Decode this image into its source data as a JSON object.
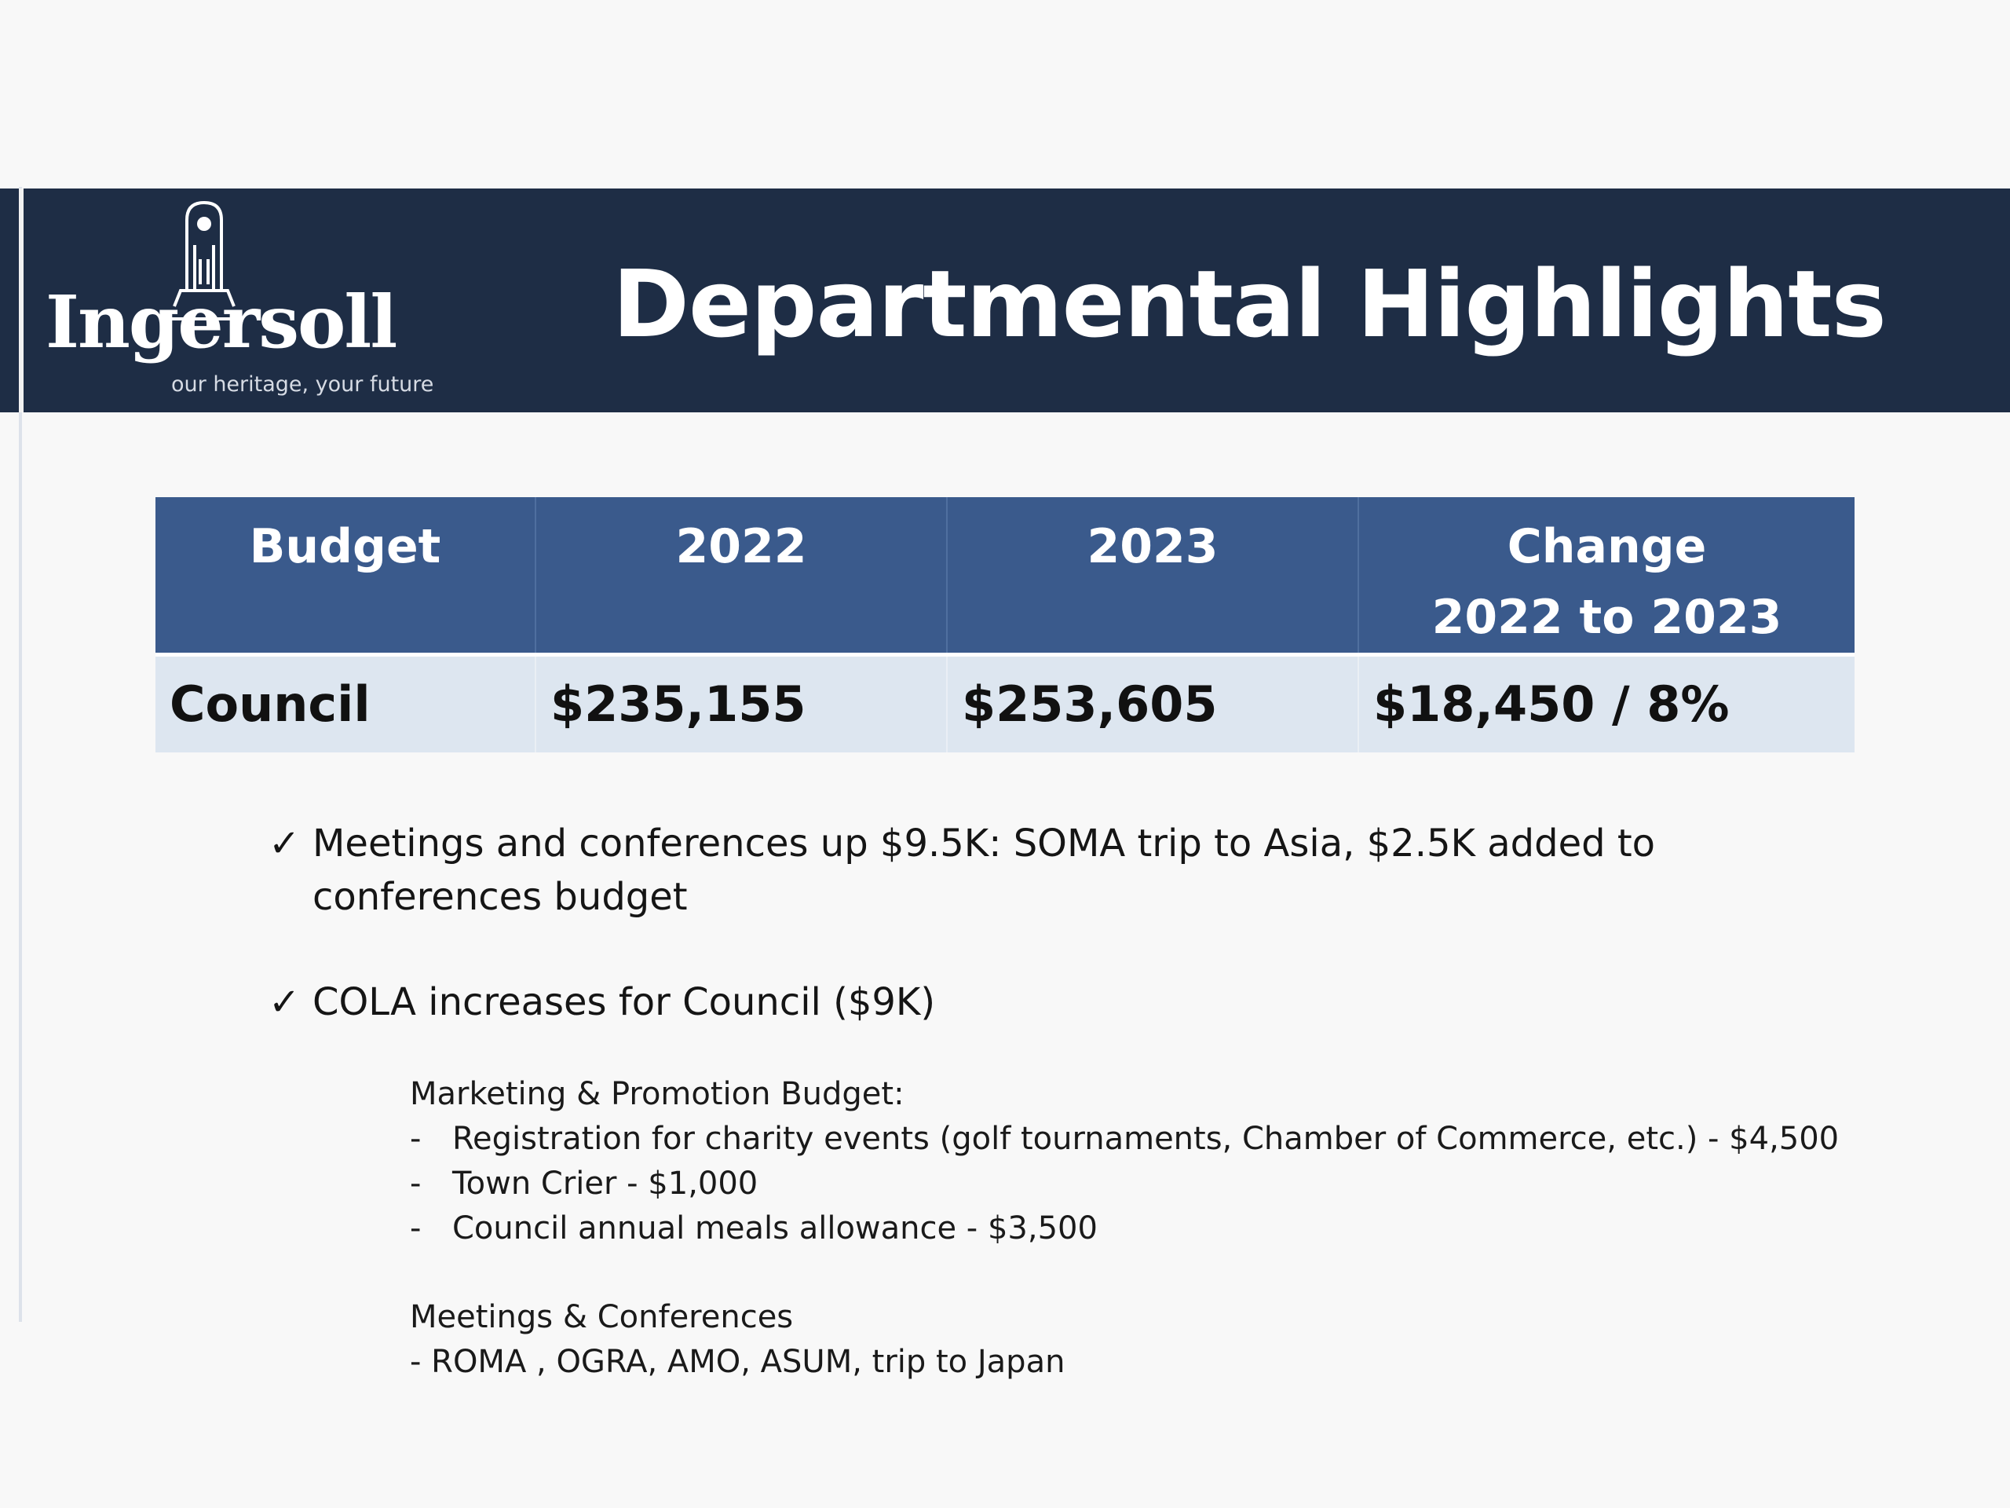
{
  "header": {
    "logo": {
      "wordmark": "Ingersoll",
      "tagline": "our heritage, your future"
    },
    "title": "Departmental Highlights"
  },
  "table": {
    "headers": [
      "Budget",
      "2022",
      "2023",
      "Change",
      "2022 to 2023"
    ],
    "rows": [
      [
        "Council",
        "$235,155",
        "$253,605",
        "$18,450 / 8%"
      ]
    ]
  },
  "bullets": {
    "check_glyph": "✓",
    "items": [
      "Meetings and conferences up $9.5K: SOMA trip to Asia, $2.5K added to conferences budget",
      "COLA increases for Council ($9K)"
    ]
  },
  "details": {
    "marketing": {
      "heading": "Marketing & Promotion Budget:",
      "items": [
        "Registration for charity events (golf tournaments, Chamber of Commerce, etc.)  - $4,500",
        "Town Crier - $1,000",
        "Council annual meals allowance - $3,500"
      ]
    },
    "meetings": {
      "heading": "Meetings & Conferences",
      "line": "-  ROMA , OGRA, AMO, ASUM, trip to Japan"
    },
    "dash": "-"
  },
  "colors": {
    "header_band": "#1e2d45",
    "table_header": "#3a5a8c",
    "table_row": "#dde6f0"
  }
}
